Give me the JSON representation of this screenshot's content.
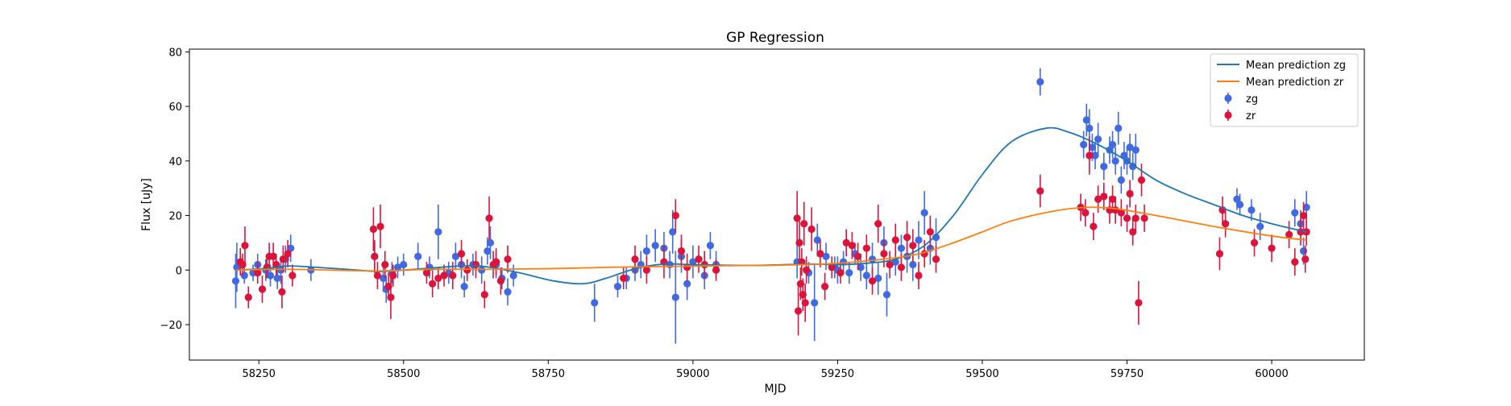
{
  "chart_data": {
    "type": "scatter",
    "title": "GP Regression",
    "xlabel": "MJD",
    "ylabel": "Flux [uJy]",
    "xlim": [
      58130,
      60160
    ],
    "ylim": [
      -33,
      81
    ],
    "x_ticks": [
      58250,
      58500,
      58750,
      59000,
      59250,
      59500,
      59750,
      60000
    ],
    "y_ticks": [
      -20,
      0,
      20,
      40,
      60,
      80
    ],
    "x_tick_labels": [
      "58250",
      "58500",
      "58750",
      "59000",
      "59250",
      "59500",
      "59750",
      "60000"
    ],
    "y_tick_labels": [
      "−20",
      "0",
      "20",
      "40",
      "60",
      "80"
    ],
    "legend_position": "top-right",
    "legend": [
      "Mean prediction zg",
      "Mean prediction zr",
      "zg",
      "zr"
    ],
    "colors": {
      "mean_zg": "#1f77b4",
      "mean_zr": "#ff7f0e",
      "zg": "#4169e1",
      "zr": "#dc143c"
    },
    "lines": [
      {
        "name": "Mean prediction zg",
        "color": "#1f77b4",
        "points": [
          [
            58210,
            0
          ],
          [
            58260,
            0.5
          ],
          [
            58300,
            1.5
          ],
          [
            58350,
            1
          ],
          [
            58420,
            0
          ],
          [
            58460,
            -0.5
          ],
          [
            58520,
            0.3
          ],
          [
            58600,
            1.5
          ],
          [
            58640,
            1.3
          ],
          [
            58700,
            -1
          ],
          [
            58760,
            -4
          ],
          [
            58810,
            -5
          ],
          [
            58850,
            -3
          ],
          [
            58900,
            0.5
          ],
          [
            58950,
            2.2
          ],
          [
            59000,
            2
          ],
          [
            59100,
            1.7
          ],
          [
            59200,
            2.2
          ],
          [
            59250,
            2
          ],
          [
            59300,
            2.5
          ],
          [
            59350,
            4
          ],
          [
            59400,
            9
          ],
          [
            59450,
            20
          ],
          [
            59500,
            35
          ],
          [
            59550,
            47
          ],
          [
            59610,
            52
          ],
          [
            59650,
            50.5
          ],
          [
            59700,
            46
          ],
          [
            59750,
            40
          ],
          [
            59800,
            33
          ],
          [
            59850,
            28
          ],
          [
            59900,
            24
          ],
          [
            59950,
            20
          ],
          [
            60000,
            17
          ],
          [
            60060,
            14
          ]
        ]
      },
      {
        "name": "Mean prediction zr",
        "color": "#ff7f0e",
        "points": [
          [
            58210,
            0
          ],
          [
            58300,
            0.3
          ],
          [
            58450,
            -0.3
          ],
          [
            58550,
            0.3
          ],
          [
            58650,
            0.3
          ],
          [
            58750,
            0.5
          ],
          [
            58850,
            1
          ],
          [
            58950,
            1.3
          ],
          [
            59050,
            1.6
          ],
          [
            59150,
            1.8
          ],
          [
            59250,
            2.5
          ],
          [
            59350,
            4.5
          ],
          [
            59400,
            6.5
          ],
          [
            59450,
            10
          ],
          [
            59500,
            14
          ],
          [
            59550,
            18
          ],
          [
            59620,
            21.5
          ],
          [
            59680,
            23
          ],
          [
            59730,
            22.5
          ],
          [
            59800,
            20
          ],
          [
            59900,
            16
          ],
          [
            60000,
            12.5
          ],
          [
            60060,
            11
          ]
        ]
      }
    ],
    "series": [
      {
        "name": "zg",
        "color": "#4169e1",
        "points": [
          [
            58210,
            -4,
            10
          ],
          [
            58212,
            1,
            9
          ],
          [
            58225,
            -2,
            3
          ],
          [
            58240,
            -1,
            3
          ],
          [
            58248,
            2,
            4
          ],
          [
            58262,
            0,
            4
          ],
          [
            58270,
            -2,
            4
          ],
          [
            58282,
            -3,
            4
          ],
          [
            58288,
            0,
            5
          ],
          [
            58296,
            4,
            5
          ],
          [
            58305,
            8,
            5
          ],
          [
            58340,
            0,
            4
          ],
          [
            58450,
            5,
            5
          ],
          [
            58465,
            -3,
            5
          ],
          [
            58470,
            -7,
            5
          ],
          [
            58480,
            -1,
            4
          ],
          [
            58490,
            1,
            4
          ],
          [
            58500,
            2,
            4
          ],
          [
            58525,
            5,
            5
          ],
          [
            58545,
            1,
            4
          ],
          [
            58560,
            14,
            10
          ],
          [
            58578,
            -1,
            4
          ],
          [
            58590,
            5,
            5
          ],
          [
            58600,
            2,
            5
          ],
          [
            58605,
            -6,
            4
          ],
          [
            58620,
            2,
            4
          ],
          [
            58635,
            0,
            5
          ],
          [
            58645,
            7,
            5
          ],
          [
            58650,
            10,
            6
          ],
          [
            58660,
            2,
            5
          ],
          [
            58670,
            -3,
            4
          ],
          [
            58680,
            -8,
            5
          ],
          [
            58690,
            -2,
            4
          ],
          [
            58830,
            -12,
            7
          ],
          [
            58870,
            -6,
            4
          ],
          [
            58885,
            -3,
            4
          ],
          [
            58900,
            0,
            4
          ],
          [
            58910,
            2,
            5
          ],
          [
            58920,
            7,
            6
          ],
          [
            58935,
            9,
            6
          ],
          [
            58950,
            8,
            6
          ],
          [
            58960,
            2,
            5
          ],
          [
            58965,
            14,
            8
          ],
          [
            58970,
            -10,
            17
          ],
          [
            58980,
            5,
            6
          ],
          [
            58990,
            -5,
            6
          ],
          [
            59000,
            3,
            6
          ],
          [
            59020,
            -2,
            5
          ],
          [
            59030,
            9,
            5
          ],
          [
            59040,
            2,
            5
          ],
          [
            59180,
            3,
            6
          ],
          [
            59200,
            -1,
            4
          ],
          [
            59210,
            -12,
            14
          ],
          [
            59215,
            11,
            6
          ],
          [
            59230,
            5,
            5
          ],
          [
            59245,
            1,
            4
          ],
          [
            59250,
            0,
            5
          ],
          [
            59260,
            3,
            4
          ],
          [
            59270,
            -1,
            4
          ],
          [
            59280,
            6,
            4
          ],
          [
            59290,
            1,
            5
          ],
          [
            59300,
            -2,
            5
          ],
          [
            59310,
            4,
            6
          ],
          [
            59320,
            -3,
            6
          ],
          [
            59330,
            10,
            6
          ],
          [
            59335,
            -9,
            8
          ],
          [
            59350,
            3,
            5
          ],
          [
            59360,
            8,
            5
          ],
          [
            59370,
            5,
            6
          ],
          [
            59380,
            2,
            6
          ],
          [
            59390,
            11,
            7
          ],
          [
            59400,
            21,
            8
          ],
          [
            59410,
            8,
            6
          ],
          [
            59420,
            12,
            7
          ],
          [
            59600,
            69,
            5
          ],
          [
            59675,
            46,
            5
          ],
          [
            59680,
            55,
            6
          ],
          [
            59685,
            52,
            7
          ],
          [
            59690,
            45,
            5
          ],
          [
            59695,
            42,
            5
          ],
          [
            59700,
            48,
            6
          ],
          [
            59710,
            38,
            5
          ],
          [
            59720,
            44,
            5
          ],
          [
            59725,
            46,
            5
          ],
          [
            59730,
            40,
            5
          ],
          [
            59735,
            52,
            6
          ],
          [
            59740,
            33,
            5
          ],
          [
            59745,
            42,
            5
          ],
          [
            59750,
            40,
            5
          ],
          [
            59755,
            45,
            5
          ],
          [
            59760,
            38,
            5
          ],
          [
            59765,
            44,
            6
          ],
          [
            59940,
            26,
            4
          ],
          [
            59945,
            24,
            4
          ],
          [
            59965,
            22,
            4
          ],
          [
            59980,
            16,
            5
          ],
          [
            60040,
            21,
            5
          ],
          [
            60050,
            17,
            5
          ],
          [
            60055,
            7,
            5
          ],
          [
            60060,
            23,
            6
          ]
        ]
      },
      {
        "name": "zr",
        "color": "#dc143c",
        "points": [
          [
            58218,
            3,
            5
          ],
          [
            58222,
            2,
            4
          ],
          [
            58226,
            9,
            7
          ],
          [
            58232,
            -10,
            4
          ],
          [
            58248,
            -1,
            4
          ],
          [
            58256,
            -7,
            5
          ],
          [
            58264,
            1,
            4
          ],
          [
            58268,
            5,
            5
          ],
          [
            58275,
            5,
            5
          ],
          [
            58280,
            2,
            4
          ],
          [
            58290,
            -8,
            6
          ],
          [
            58292,
            4,
            5
          ],
          [
            58300,
            6,
            5
          ],
          [
            58308,
            -2,
            4
          ],
          [
            58448,
            15,
            8
          ],
          [
            58450,
            5,
            6
          ],
          [
            58455,
            -2,
            5
          ],
          [
            58460,
            16,
            8
          ],
          [
            58468,
            2,
            5
          ],
          [
            58474,
            -6,
            5
          ],
          [
            58478,
            -10,
            8
          ],
          [
            58482,
            -2,
            4
          ],
          [
            58540,
            -1,
            4
          ],
          [
            58550,
            -5,
            5
          ],
          [
            58560,
            -3,
            4
          ],
          [
            58570,
            -2,
            4
          ],
          [
            58585,
            -2,
            5
          ],
          [
            58600,
            6,
            5
          ],
          [
            58610,
            0,
            4
          ],
          [
            58625,
            2,
            5
          ],
          [
            58640,
            -9,
            5
          ],
          [
            58648,
            19,
            8
          ],
          [
            58655,
            2,
            5
          ],
          [
            58660,
            3,
            5
          ],
          [
            58668,
            -4,
            5
          ],
          [
            58680,
            4,
            5
          ],
          [
            58880,
            -3,
            4
          ],
          [
            58900,
            4,
            5
          ],
          [
            58920,
            0,
            5
          ],
          [
            58950,
            3,
            6
          ],
          [
            58970,
            20,
            6
          ],
          [
            58980,
            7,
            6
          ],
          [
            58990,
            1,
            5
          ],
          [
            59010,
            4,
            5
          ],
          [
            59020,
            2,
            5
          ],
          [
            59040,
            0,
            4
          ],
          [
            59180,
            19,
            10
          ],
          [
            59182,
            -15,
            9
          ],
          [
            59184,
            10,
            8
          ],
          [
            59186,
            -5,
            6
          ],
          [
            59188,
            3,
            5
          ],
          [
            59190,
            -9,
            6
          ],
          [
            59192,
            17,
            8
          ],
          [
            59194,
            -12,
            7
          ],
          [
            59196,
            0,
            5
          ],
          [
            59205,
            15,
            8
          ],
          [
            59220,
            6,
            5
          ],
          [
            59228,
            -6,
            5
          ],
          [
            59240,
            1,
            4
          ],
          [
            59255,
            -1,
            4
          ],
          [
            59265,
            10,
            5
          ],
          [
            59275,
            9,
            5
          ],
          [
            59285,
            5,
            5
          ],
          [
            59300,
            8,
            5
          ],
          [
            59310,
            -4,
            5
          ],
          [
            59320,
            17,
            7
          ],
          [
            59330,
            6,
            5
          ],
          [
            59340,
            2,
            5
          ],
          [
            59350,
            11,
            6
          ],
          [
            59360,
            1,
            5
          ],
          [
            59370,
            12,
            6
          ],
          [
            59380,
            9,
            6
          ],
          [
            59390,
            -2,
            5
          ],
          [
            59400,
            6,
            5
          ],
          [
            59410,
            14,
            6
          ],
          [
            59420,
            4,
            5
          ],
          [
            59600,
            29,
            6
          ],
          [
            59670,
            23,
            5
          ],
          [
            59678,
            21,
            5
          ],
          [
            59685,
            42,
            7
          ],
          [
            59692,
            16,
            5
          ],
          [
            59700,
            26,
            5
          ],
          [
            59710,
            27,
            5
          ],
          [
            59720,
            22,
            5
          ],
          [
            59725,
            26,
            5
          ],
          [
            59730,
            22,
            5
          ],
          [
            59740,
            21,
            5
          ],
          [
            59750,
            19,
            5
          ],
          [
            59755,
            28,
            5
          ],
          [
            59760,
            14,
            5
          ],
          [
            59765,
            19,
            5
          ],
          [
            59770,
            -12,
            8
          ],
          [
            59775,
            33,
            6
          ],
          [
            59780,
            19,
            5
          ],
          [
            59910,
            6,
            6
          ],
          [
            59915,
            22,
            5
          ],
          [
            59920,
            17,
            5
          ],
          [
            59970,
            10,
            5
          ],
          [
            60000,
            8,
            5
          ],
          [
            60030,
            13,
            5
          ],
          [
            60040,
            3,
            5
          ],
          [
            60050,
            14,
            5
          ],
          [
            60055,
            20,
            5
          ],
          [
            60058,
            4,
            5
          ],
          [
            60060,
            14,
            5
          ]
        ]
      }
    ]
  }
}
